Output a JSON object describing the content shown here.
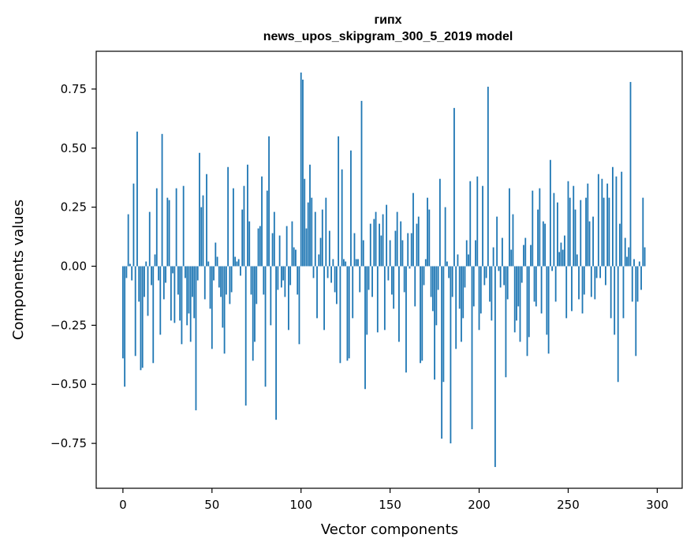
{
  "chart_data": {
    "type": "bar",
    "title_line1": "гипх",
    "title_line2": "news_upos_skipgram_300_5_2019 model",
    "xlabel": "Vector components",
    "ylabel": "Components values",
    "xlim": [
      -15,
      314
    ],
    "ylim": [
      -0.94,
      0.91
    ],
    "xticks": [
      0,
      50,
      100,
      150,
      200,
      250,
      300
    ],
    "xtick_labels": [
      "0",
      "50",
      "100",
      "150",
      "200",
      "250",
      "300"
    ],
    "yticks": [
      -0.75,
      -0.5,
      -0.25,
      0.0,
      0.25,
      0.5,
      0.75
    ],
    "ytick_labels": [
      "−0.75",
      "−0.50",
      "−0.25",
      "0.00",
      "0.25",
      "0.50",
      "0.75"
    ],
    "bar_color": "#1f77b4",
    "values": [
      -0.39,
      -0.51,
      -0.05,
      0.22,
      0.01,
      -0.06,
      0.35,
      -0.38,
      0.57,
      -0.15,
      -0.44,
      -0.43,
      -0.13,
      0.02,
      -0.21,
      0.23,
      -0.08,
      -0.41,
      0.05,
      0.33,
      -0.06,
      -0.29,
      0.56,
      -0.14,
      -0.07,
      0.29,
      0.28,
      -0.23,
      -0.03,
      -0.24,
      0.33,
      -0.12,
      -0.23,
      -0.33,
      0.34,
      -0.05,
      -0.25,
      -0.2,
      -0.32,
      -0.13,
      -0.22,
      -0.61,
      -0.06,
      0.48,
      0.25,
      0.3,
      -0.14,
      0.39,
      0.02,
      -0.18,
      -0.35,
      -0.06,
      0.1,
      0.04,
      -0.09,
      -0.13,
      -0.26,
      -0.37,
      -0.12,
      0.42,
      -0.16,
      -0.11,
      0.33,
      0.04,
      0.02,
      0.03,
      -0.04,
      0.24,
      0.34,
      -0.59,
      0.43,
      0.19,
      -0.12,
      -0.4,
      -0.32,
      -0.16,
      0.16,
      0.17,
      0.38,
      -0.12,
      -0.51,
      0.32,
      0.55,
      -0.25,
      0.14,
      0.23,
      -0.65,
      -0.1,
      0.13,
      -0.09,
      -0.06,
      -0.13,
      0.17,
      -0.27,
      -0.08,
      0.19,
      0.08,
      0.07,
      -0.12,
      -0.33,
      0.82,
      0.79,
      0.37,
      0.16,
      0.27,
      0.43,
      0.29,
      -0.05,
      0.23,
      -0.22,
      0.05,
      0.12,
      0.24,
      -0.27,
      0.29,
      -0.05,
      0.15,
      -0.07,
      0.03,
      -0.11,
      -0.16,
      0.55,
      -0.41,
      0.41,
      0.03,
      0.02,
      -0.4,
      -0.39,
      0.49,
      -0.22,
      0.14,
      0.03,
      0.03,
      -0.11,
      0.7,
      0.11,
      -0.52,
      -0.29,
      -0.1,
      0.18,
      -0.13,
      0.2,
      0.23,
      -0.28,
      0.18,
      0.13,
      0.22,
      -0.27,
      0.26,
      -0.06,
      0.11,
      -0.12,
      -0.18,
      0.15,
      0.23,
      -0.32,
      0.19,
      0.11,
      -0.11,
      -0.45,
      0.14,
      -0.01,
      0.14,
      0.31,
      -0.17,
      0.18,
      0.21,
      -0.41,
      -0.4,
      -0.08,
      0.03,
      0.29,
      0.24,
      -0.13,
      -0.19,
      -0.48,
      -0.25,
      -0.1,
      0.37,
      -0.73,
      -0.49,
      0.25,
      0.02,
      -0.05,
      -0.75,
      -0.13,
      0.67,
      -0.35,
      0.05,
      -0.18,
      -0.32,
      -0.22,
      -0.09,
      0.11,
      0.05,
      0.36,
      -0.69,
      -0.17,
      0.11,
      0.38,
      -0.27,
      -0.2,
      0.34,
      -0.08,
      -0.05,
      0.76,
      -0.15,
      -0.23,
      0.08,
      -0.85,
      0.21,
      -0.02,
      -0.09,
      0.12,
      -0.08,
      -0.47,
      -0.14,
      0.33,
      0.07,
      0.22,
      -0.28,
      -0.23,
      -0.17,
      -0.32,
      -0.07,
      0.09,
      0.12,
      -0.38,
      -0.3,
      0.09,
      0.32,
      -0.15,
      -0.17,
      0.24,
      0.33,
      -0.2,
      0.19,
      0.18,
      -0.29,
      -0.37,
      0.45,
      -0.02,
      0.31,
      -0.15,
      0.27,
      0.06,
      0.1,
      0.07,
      0.13,
      -0.22,
      0.36,
      0.29,
      -0.19,
      0.34,
      0.24,
      0.05,
      -0.14,
      0.28,
      -0.2,
      -0.12,
      0.29,
      0.35,
      0.19,
      -0.13,
      0.21,
      -0.14,
      -0.05,
      0.39,
      -0.05,
      0.37,
      0.29,
      -0.08,
      0.35,
      0.29,
      -0.22,
      0.42,
      -0.29,
      0.38,
      -0.49,
      0.18,
      0.4,
      -0.22,
      0.12,
      0.04,
      0.08,
      0.78,
      -0.15,
      0.03,
      -0.38,
      -0.15,
      0.02,
      -0.1,
      0.29,
      0.08
    ]
  }
}
